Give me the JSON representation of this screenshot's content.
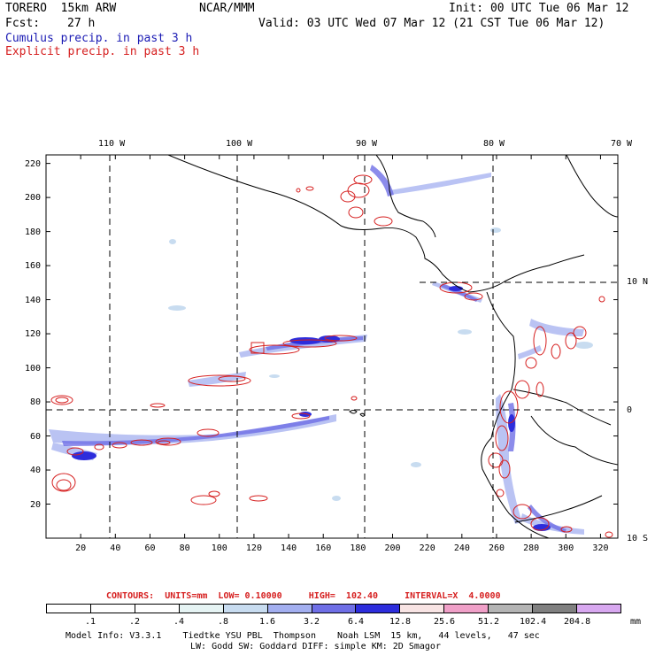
{
  "header": {
    "model": "TORERO  15km ARW",
    "org": "NCAR/MMM",
    "init": "Init: 00 UTC Tue 06 Mar 12",
    "fcst_label": "Fcst:",
    "fcst_value": "27 h",
    "valid": "Valid: 03 UTC Wed 07 Mar 12 (21 CST Tue 06 Mar 12)",
    "field1": "Cumulus precip. in past 3 h",
    "field2": "Explicit precip. in past 3 h"
  },
  "colors": {
    "cumulus": "#1b1bb4",
    "explicit": "#d62020",
    "coast": "#000000"
  },
  "map": {
    "lon_labels": [
      "110 W",
      "100 W",
      "90 W",
      "80 W",
      "70 W"
    ],
    "lat_labels": [
      "10 N",
      "0",
      "10 S"
    ],
    "x_ticks": [
      "20",
      "40",
      "60",
      "80",
      "100",
      "120",
      "140",
      "160",
      "180",
      "200",
      "220",
      "240",
      "260",
      "280",
      "300",
      "320"
    ],
    "y_ticks": [
      "20",
      "40",
      "60",
      "80",
      "100",
      "120",
      "140",
      "160",
      "180",
      "200",
      "220"
    ],
    "x_range": [
      0,
      330
    ],
    "y_range": [
      0,
      225
    ]
  },
  "contour_info": {
    "text": "CONTOURS:  UNITS=mm  LOW= 0.10000     HIGH=  102.40     INTERVAL=X  4.0000"
  },
  "colorbar": {
    "colors": [
      "#ffffff",
      "#ffffff",
      "#ffffff",
      "#e6f4f4",
      "#c8dcf0",
      "#a3aff0",
      "#6f6fe6",
      "#2d2ddc",
      "#f8e4e4",
      "#f0a0c8",
      "#b4b4b4",
      "#808080",
      "#d8a8f0"
    ],
    "labels": [
      ".1",
      ".2",
      ".4",
      ".8",
      "1.6",
      "3.2",
      "6.4",
      "12.8",
      "25.6",
      "51.2",
      "102.4",
      "204.8"
    ],
    "unit": "mm"
  },
  "footer": {
    "line1": "Model Info: V3.3.1    Tiedtke YSU PBL  Thompson    Noah LSM  15 km,   44 levels,   47 sec",
    "line2": "LW: Godd SW: Goddard DIFF: simple KM: 2D Smagor"
  }
}
